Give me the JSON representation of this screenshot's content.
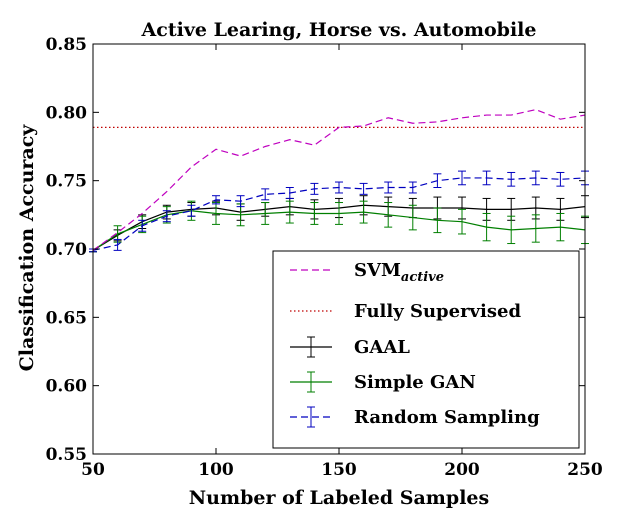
{
  "chart_data": {
    "type": "line",
    "title": "Active Learing, Horse vs. Automobile",
    "xlabel": "Number of Labeled Samples",
    "ylabel": "Classification Accuracy",
    "xlim": [
      50,
      250
    ],
    "ylim": [
      0.55,
      0.85
    ],
    "xticks": [
      50,
      100,
      150,
      200,
      250
    ],
    "xtick_labels": [
      "50",
      "100",
      "150",
      "200",
      "250"
    ],
    "yticks": [
      0.55,
      0.6,
      0.65,
      0.7,
      0.75,
      0.8,
      0.85
    ],
    "ytick_labels": [
      "0.55",
      "0.60",
      "0.65",
      "0.70",
      "0.75",
      "0.80",
      "0.85"
    ],
    "grid": false,
    "legend_position": "lower-right",
    "series": [
      {
        "name": "SVM",
        "name_subscript": "active",
        "color": "#bf00bf",
        "style": "dashed",
        "x": [
          50,
          60,
          70,
          80,
          90,
          100,
          110,
          120,
          130,
          140,
          150,
          160,
          170,
          180,
          190,
          200,
          210,
          220,
          230,
          240,
          250
        ],
        "y": [
          0.699,
          0.712,
          0.726,
          0.742,
          0.76,
          0.773,
          0.768,
          0.775,
          0.78,
          0.776,
          0.789,
          0.79,
          0.796,
          0.792,
          0.793,
          0.796,
          0.798,
          0.798,
          0.802,
          0.795,
          0.798
        ]
      },
      {
        "name": "Fully Supervised",
        "color": "#bf0000",
        "style": "dotted",
        "x": [
          50,
          250
        ],
        "y": [
          0.789,
          0.789
        ]
      },
      {
        "name": "GAAL",
        "color": "#000000",
        "style": "solid",
        "errorbars": true,
        "x": [
          50,
          60,
          70,
          80,
          90,
          100,
          110,
          120,
          130,
          140,
          150,
          160,
          170,
          180,
          190,
          200,
          210,
          220,
          230,
          240,
          250
        ],
        "y": [
          0.699,
          0.71,
          0.72,
          0.727,
          0.729,
          0.73,
          0.727,
          0.729,
          0.731,
          0.729,
          0.73,
          0.732,
          0.731,
          0.73,
          0.73,
          0.73,
          0.729,
          0.729,
          0.73,
          0.729,
          0.731
        ],
        "err": [
          0.001,
          0.004,
          0.005,
          0.005,
          0.005,
          0.005,
          0.006,
          0.005,
          0.006,
          0.007,
          0.007,
          0.007,
          0.007,
          0.007,
          0.008,
          0.008,
          0.008,
          0.008,
          0.008,
          0.008,
          0.008
        ]
      },
      {
        "name": "Simple GAN",
        "color": "#007f00",
        "style": "solid",
        "errorbars": true,
        "x": [
          50,
          60,
          70,
          80,
          90,
          100,
          110,
          120,
          130,
          140,
          150,
          160,
          170,
          180,
          190,
          200,
          210,
          220,
          230,
          240,
          250
        ],
        "y": [
          0.699,
          0.711,
          0.718,
          0.725,
          0.728,
          0.726,
          0.725,
          0.726,
          0.727,
          0.726,
          0.726,
          0.727,
          0.725,
          0.723,
          0.721,
          0.72,
          0.716,
          0.714,
          0.715,
          0.716,
          0.714
        ],
        "err": [
          0.001,
          0.006,
          0.006,
          0.006,
          0.007,
          0.008,
          0.008,
          0.008,
          0.008,
          0.008,
          0.008,
          0.008,
          0.009,
          0.009,
          0.009,
          0.009,
          0.01,
          0.01,
          0.01,
          0.01,
          0.01
        ]
      },
      {
        "name": "Random Sampling",
        "color": "#0000bf",
        "style": "dashed",
        "errorbars": true,
        "x": [
          50,
          60,
          70,
          80,
          90,
          100,
          110,
          120,
          130,
          140,
          150,
          160,
          170,
          180,
          190,
          200,
          210,
          220,
          230,
          240,
          250
        ],
        "y": [
          0.699,
          0.703,
          0.717,
          0.724,
          0.728,
          0.736,
          0.735,
          0.74,
          0.741,
          0.744,
          0.745,
          0.744,
          0.745,
          0.745,
          0.75,
          0.752,
          0.752,
          0.751,
          0.752,
          0.751,
          0.752
        ],
        "err": [
          0.001,
          0.004,
          0.004,
          0.004,
          0.004,
          0.003,
          0.004,
          0.004,
          0.004,
          0.004,
          0.004,
          0.004,
          0.004,
          0.004,
          0.005,
          0.005,
          0.005,
          0.005,
          0.005,
          0.005,
          0.005
        ]
      }
    ]
  }
}
